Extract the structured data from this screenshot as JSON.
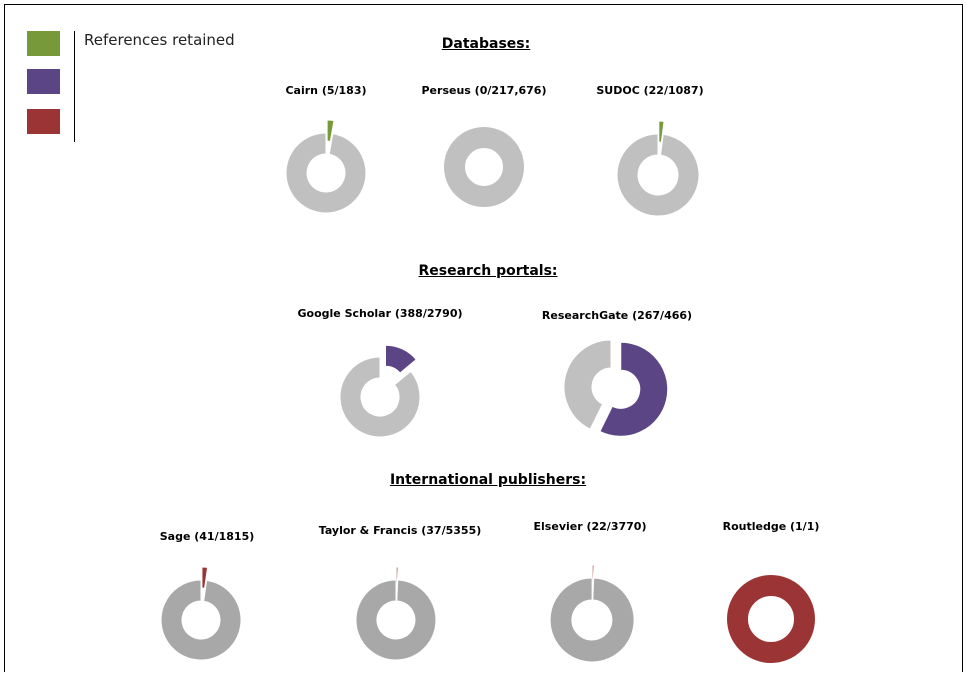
{
  "legend": {
    "label": "References retained",
    "swatches": [
      "#77993a",
      "#5b4585",
      "#9b3535"
    ]
  },
  "sections": {
    "databases": "Databases:",
    "portals": "Research portals:",
    "publishers": "International publishers:"
  },
  "chart_data": [
    {
      "type": "pie",
      "group": "databases",
      "label": "Cairn (5/183)",
      "slices": [
        {
          "value": 5,
          "color": "#77993a"
        },
        {
          "value": 178,
          "color": "#c0c0c0"
        }
      ]
    },
    {
      "type": "pie",
      "group": "databases",
      "label": "Perseus (0/217,676)",
      "slices": [
        {
          "value": 0,
          "color": "#77993a"
        },
        {
          "value": 217676,
          "color": "#c0c0c0"
        }
      ]
    },
    {
      "type": "pie",
      "group": "databases",
      "label": "SUDOC (22/1087)",
      "slices": [
        {
          "value": 22,
          "color": "#77993a"
        },
        {
          "value": 1065,
          "color": "#c0c0c0"
        }
      ]
    },
    {
      "type": "pie",
      "group": "portals",
      "label": "Google Scholar (388/2790)",
      "slices": [
        {
          "value": 388,
          "color": "#5b4585"
        },
        {
          "value": 2402,
          "color": "#c0c0c0"
        }
      ]
    },
    {
      "type": "pie",
      "group": "portals",
      "label": "ResearchGate (267/466)",
      "slices": [
        {
          "value": 267,
          "color": "#5b4585"
        },
        {
          "value": 199,
          "color": "#c0c0c0"
        }
      ]
    },
    {
      "type": "pie",
      "group": "publishers",
      "label": "Sage (41/1815)",
      "slices": [
        {
          "value": 41,
          "color": "#9b3535"
        },
        {
          "value": 1774,
          "color": "#a8a8a8"
        }
      ]
    },
    {
      "type": "pie",
      "group": "publishers",
      "label": "Taylor & Francis (37/5355)",
      "slices": [
        {
          "value": 37,
          "color": "#9b3535"
        },
        {
          "value": 5318,
          "color": "#a8a8a8"
        }
      ]
    },
    {
      "type": "pie",
      "group": "publishers",
      "label": "Elsevier (22/3770)",
      "slices": [
        {
          "value": 22,
          "color": "#9b3535"
        },
        {
          "value": 3748,
          "color": "#a8a8a8"
        }
      ]
    },
    {
      "type": "pie",
      "group": "publishers",
      "label": "Routledge (1/1)",
      "slices": [
        {
          "value": 1,
          "color": "#9b3535"
        },
        {
          "value": 0,
          "color": "#a8a8a8"
        }
      ]
    }
  ]
}
